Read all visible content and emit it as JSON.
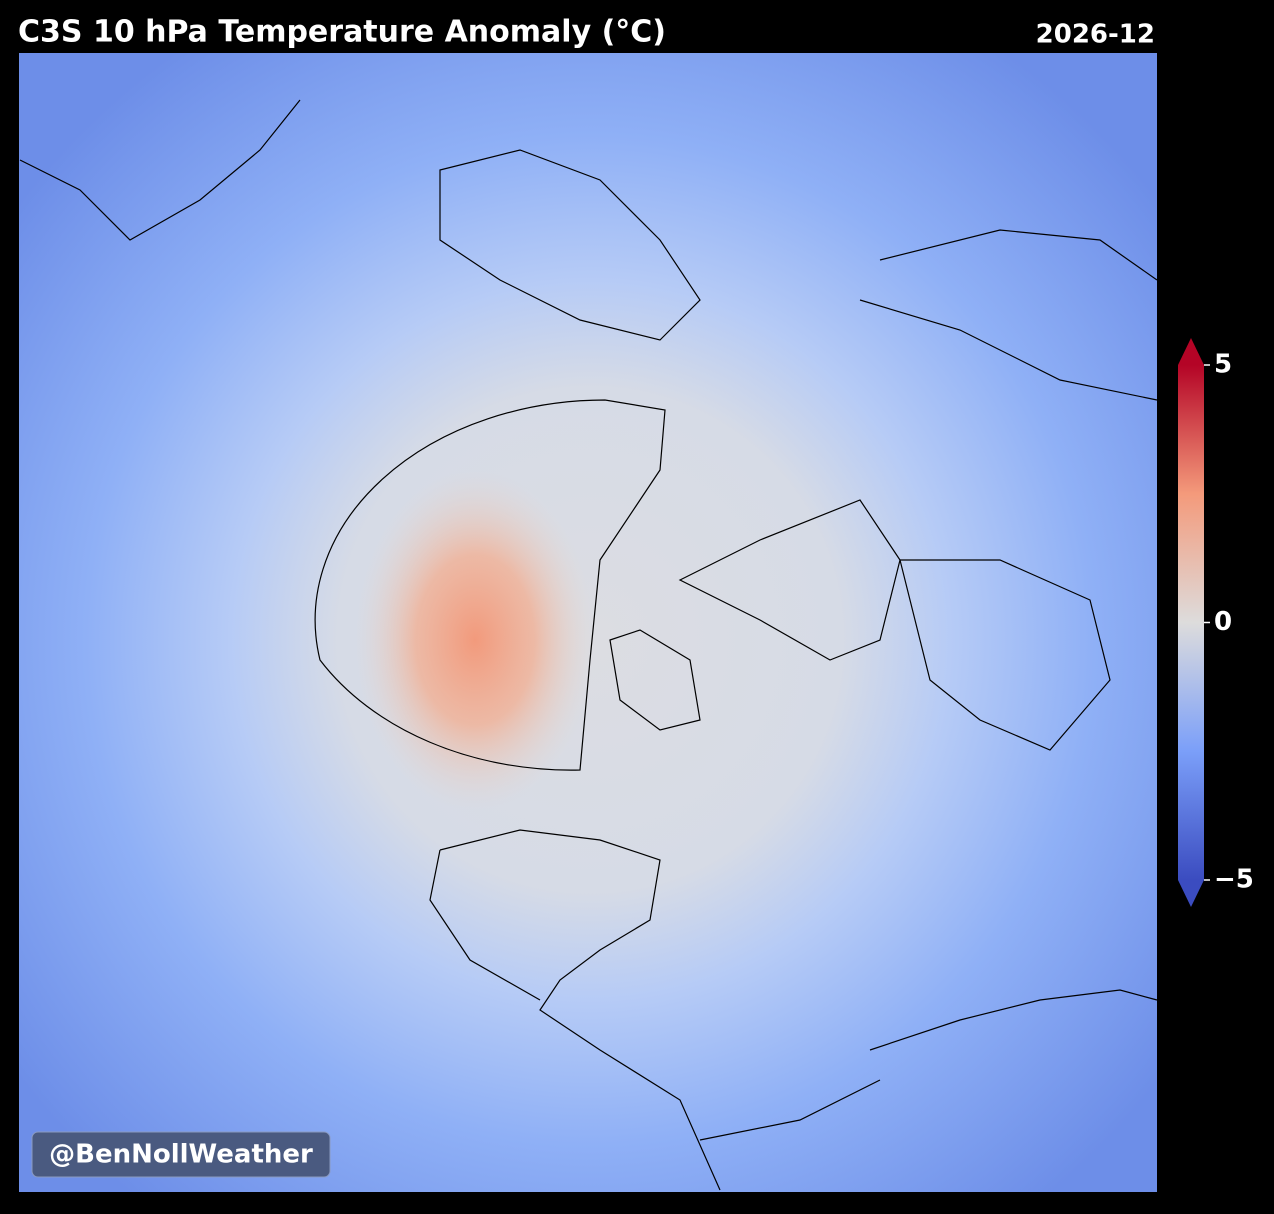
{
  "title": "C3S 10 hPa Temperature Anomaly (°C)",
  "date": "2026-12",
  "watermark": "@BenNollWeather",
  "colorbar": {
    "colormap": "coolwarm",
    "lim": [
      -5,
      5
    ],
    "ticks": [
      5,
      0,
      {
        "value": -5,
        "label": "−5"
      }
    ]
  }
}
